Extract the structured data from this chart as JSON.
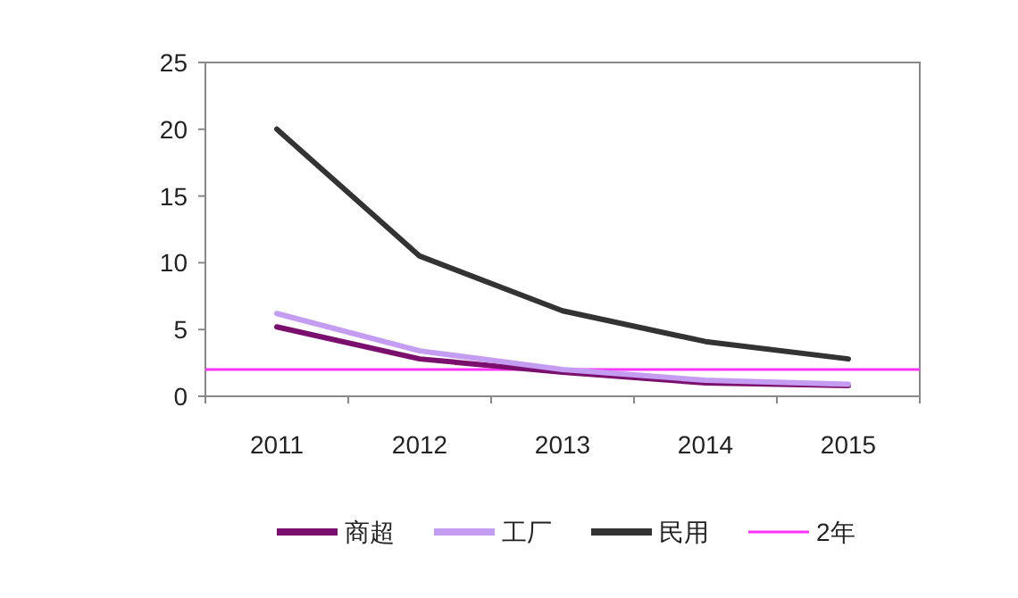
{
  "chart_data": {
    "type": "line",
    "categories": [
      "2011",
      "2012",
      "2013",
      "2014",
      "2015"
    ],
    "series": [
      {
        "name": "商超",
        "color": "#7b0f6e",
        "values": [
          5.2,
          2.8,
          1.8,
          1.0,
          0.8
        ]
      },
      {
        "name": "工厂",
        "color": "#c49cf2",
        "values": [
          6.2,
          3.4,
          2.0,
          1.2,
          0.9
        ]
      },
      {
        "name": "民用",
        "color": "#333333",
        "values": [
          20,
          10.5,
          6.4,
          4.1,
          2.8
        ]
      }
    ],
    "ref_lines": [
      {
        "axis": "y",
        "value": 2,
        "label": "2年",
        "color": "#ff33ff"
      }
    ],
    "ylim": [
      0,
      25
    ],
    "yticks": [
      0,
      5,
      10,
      15,
      20,
      25
    ],
    "grid": false,
    "legend": "bottom",
    "marker": "none",
    "line_style": "solid"
  }
}
